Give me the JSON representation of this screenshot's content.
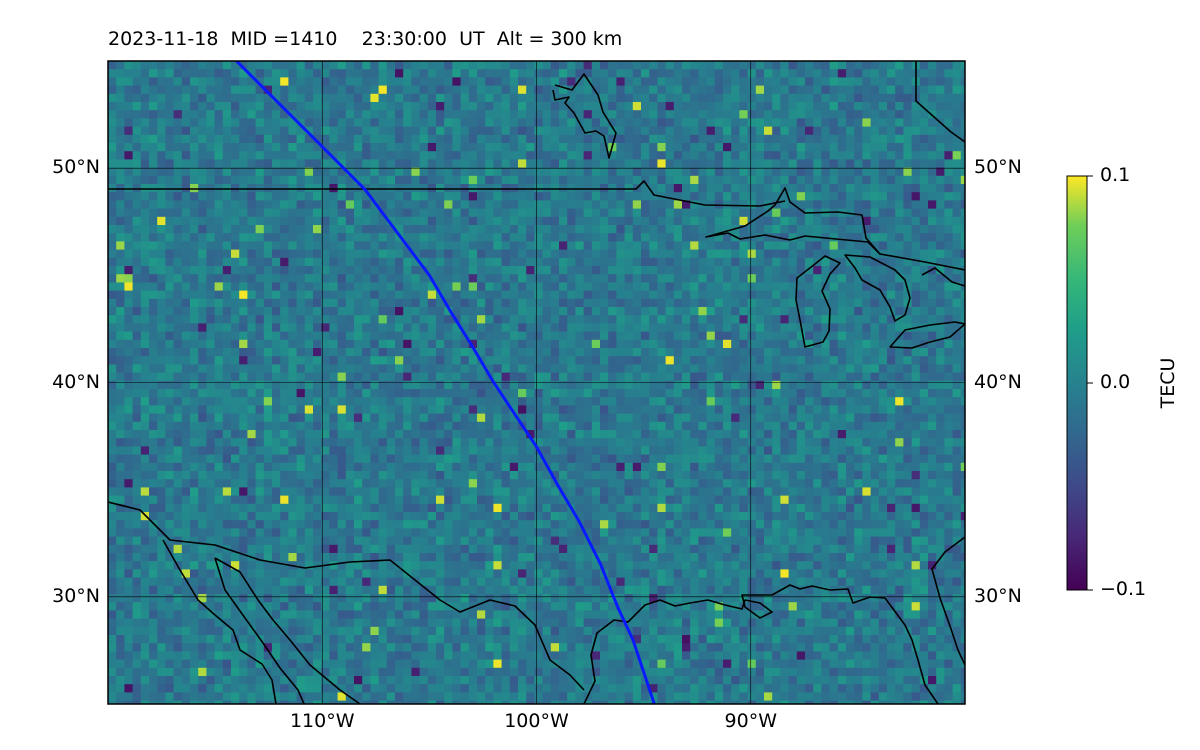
{
  "title": {
    "date": "2023-11-18",
    "mid": "MID =1410",
    "time": "23:30:00",
    "time_unit": "UT",
    "altitude": "Alt = 300 km"
  },
  "map": {
    "lon_range": [
      -120,
      -80
    ],
    "lat_range": [
      25,
      55
    ],
    "lat_ticks": [
      {
        "value": 50,
        "label": "50°N"
      },
      {
        "value": 40,
        "label": "40°N"
      },
      {
        "value": 30,
        "label": "30°N"
      }
    ],
    "lon_ticks": [
      {
        "value": -110,
        "label": "110°W"
      },
      {
        "value": -100,
        "label": "100°W"
      },
      {
        "value": -90,
        "label": "90°W"
      }
    ],
    "gridlines": true,
    "colormap": "viridis",
    "track_color": "#0a1aff",
    "track_points": [
      [
        -114,
        55
      ],
      [
        -110,
        51
      ],
      [
        -108,
        49
      ],
      [
        -106.5,
        47
      ],
      [
        -105,
        45
      ],
      [
        -104,
        43.3
      ],
      [
        -103,
        41.7
      ],
      [
        -102,
        40
      ],
      [
        -101,
        38.5
      ],
      [
        -100,
        37
      ],
      [
        -99,
        35.2
      ],
      [
        -98,
        33.5
      ],
      [
        -97,
        31.5
      ],
      [
        -96.2,
        29.5
      ],
      [
        -95.5,
        28
      ],
      [
        -94.5,
        25
      ]
    ]
  },
  "colorbar": {
    "label": "TECU",
    "min": -0.1,
    "max": 0.1,
    "ticks": [
      {
        "value": 0.1,
        "label": "0.1"
      },
      {
        "value": 0.0,
        "label": "0.0"
      },
      {
        "value": -0.1,
        "label": "−0.1"
      }
    ]
  }
}
